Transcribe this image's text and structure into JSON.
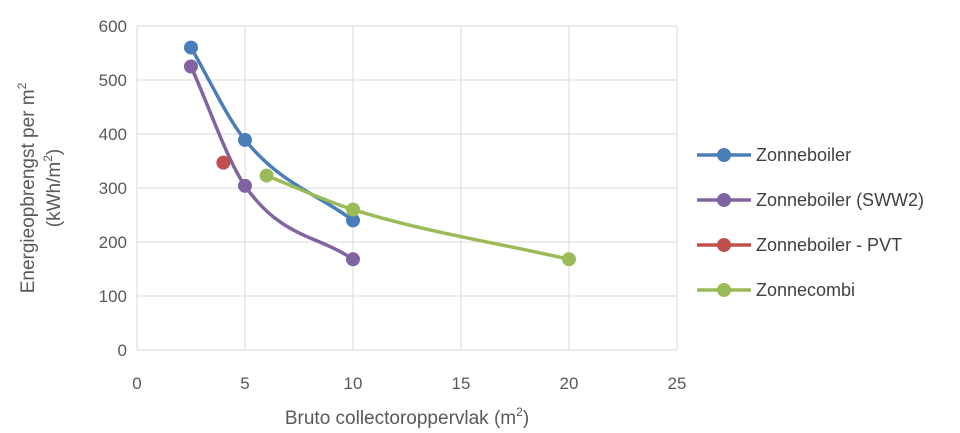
{
  "chart_data": {
    "type": "line",
    "xlabel": "Bruto collectoroppervlak (m",
    "xlabel_sup": "2",
    "xlabel_end": ")",
    "ylabel_line1": "Energieopbrengst per m",
    "ylabel_line1_sup": "2",
    "ylabel_line2": "(kWh/m",
    "ylabel_line2_sup": "2",
    "ylabel_line2_end": ")",
    "xlim": [
      0,
      25
    ],
    "ylim": [
      0,
      600
    ],
    "x_ticks": [
      "0",
      "5",
      "10",
      "15",
      "20",
      "25"
    ],
    "y_ticks": [
      "0",
      "100",
      "200",
      "300",
      "400",
      "500",
      "600"
    ],
    "grid": true,
    "legend_position": "right",
    "series": [
      {
        "name": "Zonneboiler",
        "color": "#4a7ebb",
        "points": [
          [
            2.5,
            560
          ],
          [
            5,
            389
          ],
          [
            10,
            240
          ]
        ]
      },
      {
        "name": "Zonneboiler (SWW2)",
        "color": "#8064a2",
        "points": [
          [
            2.5,
            525
          ],
          [
            5,
            304
          ],
          [
            10,
            168
          ]
        ]
      },
      {
        "name": "Zonneboiler - PVT",
        "color": "#c0504d",
        "points": [
          [
            4,
            347
          ]
        ]
      },
      {
        "name": "Zonnecombi",
        "color": "#9bbb59",
        "points": [
          [
            6,
            323
          ],
          [
            10,
            260
          ],
          [
            20,
            168
          ]
        ]
      }
    ]
  }
}
